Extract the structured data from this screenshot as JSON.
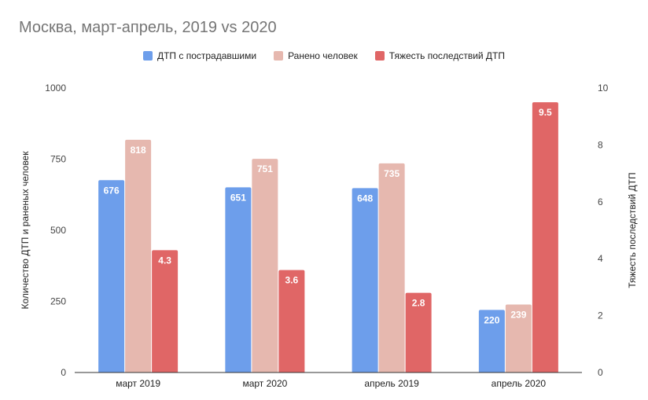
{
  "chart_data": {
    "type": "bar",
    "title": "Москва, март-апрель, 2019 vs 2020",
    "categories": [
      "март 2019",
      "март 2020",
      "апрель 2019",
      "апрель 2020"
    ],
    "series": [
      {
        "name": "ДТП с пострадавшими",
        "axis": "left",
        "color": "#6d9eeb",
        "values": [
          676,
          651,
          648,
          220
        ]
      },
      {
        "name": "Ранено человек",
        "axis": "left",
        "color": "#e6b8af",
        "values": [
          818,
          751,
          735,
          239
        ]
      },
      {
        "name": "Тяжесть последствий ДТП",
        "axis": "right",
        "color": "#e06666",
        "values": [
          4.3,
          3.6,
          2.8,
          9.5
        ]
      }
    ],
    "y_left": {
      "label": "Количество ДТП и раненых человек",
      "ylim": [
        0,
        1000
      ],
      "ticks": [
        "0",
        "250",
        "500",
        "750",
        "1000"
      ]
    },
    "y_right": {
      "label": "Тяжесть последствий ДТП",
      "ylim": [
        0,
        10
      ],
      "ticks": [
        "0",
        "2",
        "4",
        "6",
        "8",
        "10"
      ]
    },
    "data_labels": [
      [
        "676",
        "651",
        "648",
        "220"
      ],
      [
        "818",
        "751",
        "735",
        "239"
      ],
      [
        "4.3",
        "3.6",
        "2.8",
        "9.5"
      ]
    ],
    "legend_position": "top",
    "grid": false
  }
}
